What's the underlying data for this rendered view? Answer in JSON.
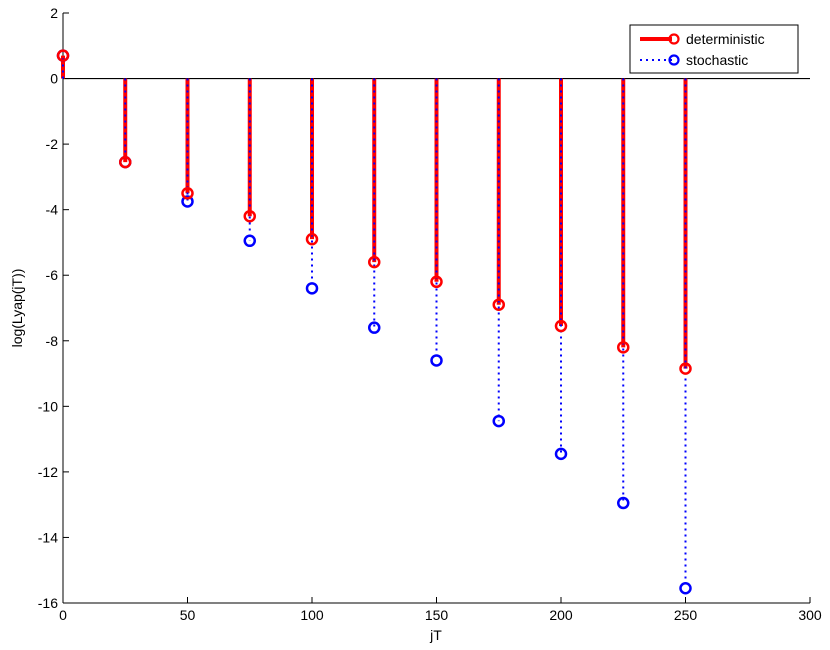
{
  "chart_data": {
    "type": "stem",
    "xlabel": "jT",
    "ylabel": "log(Lyap(jT))",
    "xlim": [
      0,
      300
    ],
    "ylim": [
      -16,
      2
    ],
    "xticks": [
      0,
      50,
      100,
      150,
      200,
      250,
      300
    ],
    "yticks": [
      -16,
      -14,
      -12,
      -10,
      -8,
      -6,
      -4,
      -2,
      0,
      2
    ],
    "grid": false,
    "legend_position": "top-right",
    "series": [
      {
        "name": "deterministic",
        "color": "#ff0000",
        "line_style": "solid",
        "x": [
          0,
          25,
          50,
          75,
          100,
          125,
          150,
          175,
          200,
          225,
          250
        ],
        "y": [
          0.7,
          -2.55,
          -3.5,
          -4.2,
          -4.9,
          -5.6,
          -6.2,
          -6.9,
          -7.55,
          -8.2,
          -8.85
        ]
      },
      {
        "name": "stochastic",
        "color": "#0000ff",
        "line_style": "dotted",
        "x": [
          0,
          25,
          50,
          75,
          100,
          125,
          150,
          175,
          200,
          225,
          250
        ],
        "y": [
          0.7,
          -2.55,
          -3.75,
          -4.95,
          -6.4,
          -7.6,
          -8.6,
          -10.45,
          -11.45,
          -12.95,
          -15.55
        ]
      }
    ]
  }
}
